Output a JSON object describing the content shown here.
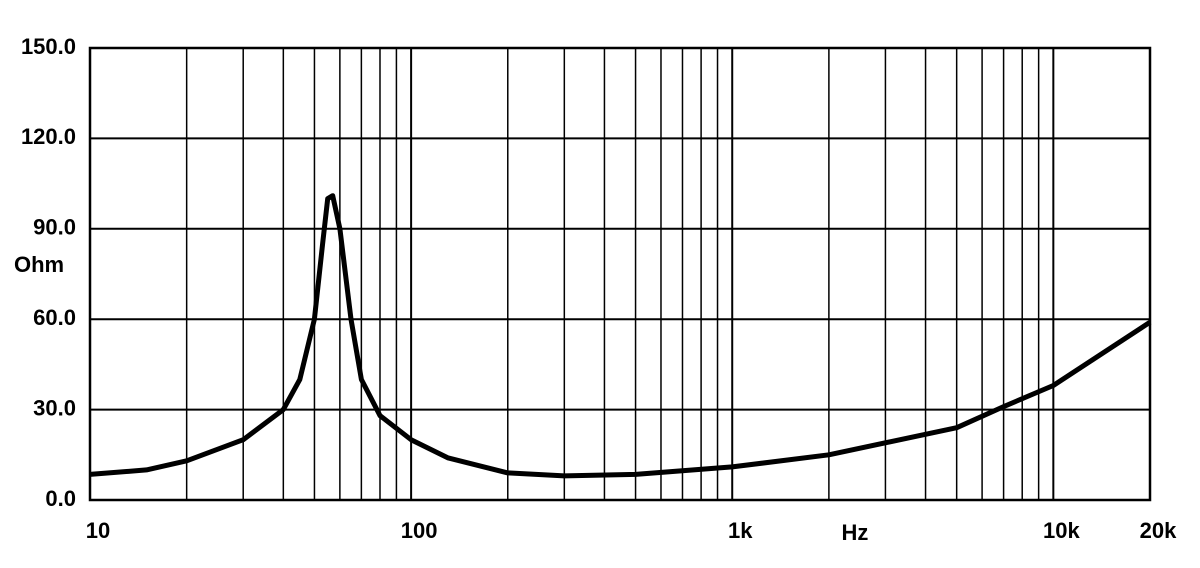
{
  "chart_data": {
    "type": "line",
    "x_label": "Hz",
    "y_label": "Ohm",
    "x": [
      10,
      15,
      20,
      30,
      40,
      45,
      50,
      53,
      55,
      57,
      60,
      65,
      70,
      80,
      100,
      130,
      200,
      300,
      500,
      1000,
      2000,
      5000,
      7000,
      10000,
      20000
    ],
    "series": [
      {
        "color": "#000000",
        "values": [
          8.5,
          10,
          13,
          20,
          30,
          40,
          60,
          85,
          100,
          101,
          90,
          60,
          40,
          28,
          20,
          14,
          9,
          8,
          8.5,
          11,
          15,
          24,
          31,
          38,
          59
        ]
      }
    ],
    "xlog": true,
    "xlim": [
      10,
      20000
    ],
    "xticks": [
      10,
      100,
      {
        "value": 1000,
        "label": "1k"
      },
      {
        "value": 10000,
        "label": "10k"
      },
      {
        "value": 20000,
        "label": "20k"
      }
    ],
    "x_minor_ticks": [
      20,
      30,
      40,
      50,
      60,
      70,
      80,
      90,
      200,
      300,
      400,
      500,
      600,
      700,
      800,
      900,
      2000,
      3000,
      4000,
      5000,
      6000,
      7000,
      8000,
      9000
    ],
    "ylim": [
      0,
      150
    ],
    "yticks": [
      {
        "value": 0,
        "label": "0.0"
      },
      {
        "value": 30,
        "label": "30.0"
      },
      {
        "value": 60,
        "label": "60.0"
      },
      {
        "value": 90,
        "label": "90.0"
      },
      {
        "value": 120,
        "label": "120.0"
      },
      {
        "value": 150,
        "label": "150.0"
      }
    ],
    "grid": true
  }
}
